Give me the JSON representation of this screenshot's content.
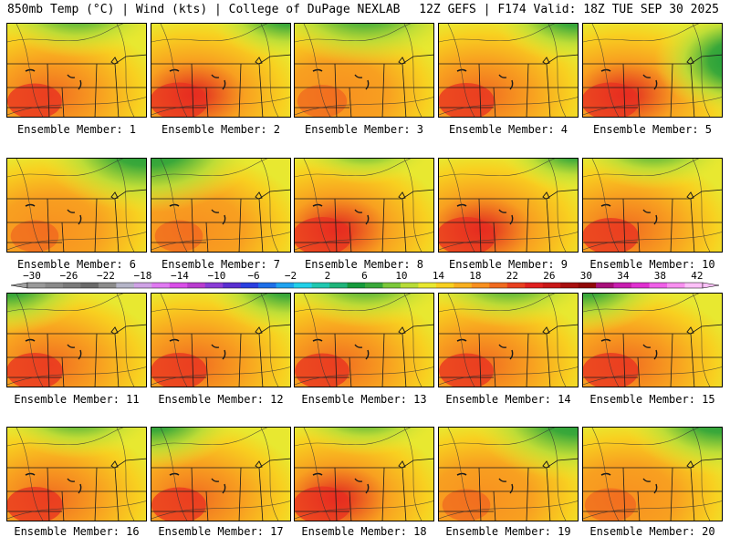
{
  "header": {
    "left_title": "850mb Temp (°C) | Wind (kts) | College of DuPage NEXLAB",
    "right_title": "12Z GEFS | F174 Valid: 18Z TUE SEP 30 2025"
  },
  "panels": [
    {
      "label": "Ensemble Member: 1",
      "warmth": 0.55,
      "cool_corner": "top"
    },
    {
      "label": "Ensemble Member: 2",
      "warmth": 0.65,
      "cool_corner": "top-right"
    },
    {
      "label": "Ensemble Member: 3",
      "warmth": 0.4,
      "cool_corner": "top"
    },
    {
      "label": "Ensemble Member: 4",
      "warmth": 0.6,
      "cool_corner": "top-right"
    },
    {
      "label": "Ensemble Member: 5",
      "warmth": 0.65,
      "cool_corner": "right"
    },
    {
      "label": "Ensemble Member: 6",
      "warmth": 0.35,
      "cool_corner": "top-right"
    },
    {
      "label": "Ensemble Member: 7",
      "warmth": 0.35,
      "cool_corner": "top-left"
    },
    {
      "label": "Ensemble Member: 8",
      "warmth": 0.7,
      "cool_corner": "top"
    },
    {
      "label": "Ensemble Member: 9",
      "warmth": 0.7,
      "cool_corner": "top-right"
    },
    {
      "label": "Ensemble Member: 10",
      "warmth": 0.6,
      "cool_corner": "top"
    },
    {
      "label": "Ensemble Member: 11",
      "warmth": 0.6,
      "cool_corner": "top-left"
    },
    {
      "label": "Ensemble Member: 12",
      "warmth": 0.6,
      "cool_corner": "top-right"
    },
    {
      "label": "Ensemble Member: 13",
      "warmth": 0.55,
      "cool_corner": "top"
    },
    {
      "label": "Ensemble Member: 14",
      "warmth": 0.55,
      "cool_corner": "top"
    },
    {
      "label": "Ensemble Member: 15",
      "warmth": 0.6,
      "cool_corner": "top-left"
    },
    {
      "label": "Ensemble Member: 16",
      "warmth": 0.6,
      "cool_corner": "top"
    },
    {
      "label": "Ensemble Member: 17",
      "warmth": 0.55,
      "cool_corner": "top-left"
    },
    {
      "label": "Ensemble Member: 18",
      "warmth": 0.65,
      "cool_corner": "top"
    },
    {
      "label": "Ensemble Member: 19",
      "warmth": 0.35,
      "cool_corner": "top-right"
    },
    {
      "label": "Ensemble Member: 20",
      "warmth": 0.45,
      "cool_corner": "top-right"
    }
  ],
  "colorbar": {
    "tick_labels": [
      "−30",
      "−26",
      "−22",
      "−18",
      "−14",
      "−10",
      "−6",
      "−2",
      "2",
      "6",
      "10",
      "14",
      "18",
      "22",
      "26",
      "30",
      "34",
      "38",
      "42"
    ],
    "colors": [
      "#9a9a9a",
      "#8a8a8a",
      "#7a7a7a",
      "#6a6a6a",
      "#8c8c8c",
      "#b5b5c8",
      "#cfa3e6",
      "#e07af2",
      "#d94fe8",
      "#b93ccf",
      "#8a3cd6",
      "#5a2fd0",
      "#2a3fe0",
      "#1e6fe8",
      "#1fa3f0",
      "#22d0e8",
      "#20c8b0",
      "#1fb47a",
      "#169a3c",
      "#3aa83a",
      "#7cc83a",
      "#b8dc38",
      "#e8e830",
      "#f8d020",
      "#f8b020",
      "#f89020",
      "#f06a20",
      "#e84020",
      "#e02020",
      "#c81818",
      "#a81010",
      "#900808",
      "#a8107a",
      "#c81eb0",
      "#e030d0",
      "#f060e8",
      "#f890f0",
      "#fcc0f8"
    ]
  }
}
